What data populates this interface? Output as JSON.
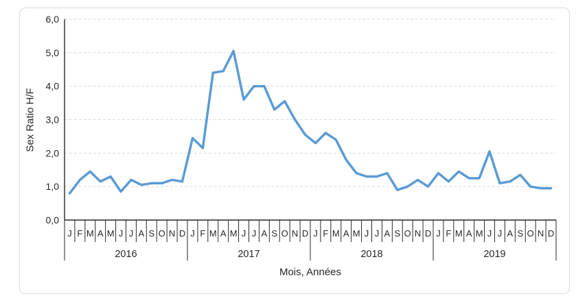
{
  "window": {
    "background": "#ffffff",
    "frame_border_color": "#d9d9d9"
  },
  "chart": {
    "y_axis_title": "Sex Ratio H/F",
    "x_axis_title": "Mois, Années",
    "colors": {
      "line": "#5B9BD5",
      "gridline": "#D9D9D9",
      "axis": "#262626",
      "text": "#262626"
    }
  },
  "chart_data": {
    "type": "line",
    "title": "",
    "ylabel": "Sex Ratio H/F",
    "xlabel": "Mois, Années",
    "ylim": [
      0,
      6
    ],
    "grid": "horizontal-dashed",
    "legend": "none",
    "y_ticks": [
      {
        "value": 0,
        "label": "0,0"
      },
      {
        "value": 1,
        "label": "1,0"
      },
      {
        "value": 2,
        "label": "2,0"
      },
      {
        "value": 3,
        "label": "3,0"
      },
      {
        "value": 4,
        "label": "4,0"
      },
      {
        "value": 5,
        "label": "5,0"
      },
      {
        "value": 6,
        "label": "6,0"
      }
    ],
    "x_categories": {
      "months": [
        "J",
        "F",
        "M",
        "A",
        "M",
        "J",
        "J",
        "A",
        "S",
        "O",
        "N",
        "D"
      ],
      "years": [
        "2016",
        "2017",
        "2018",
        "2019"
      ]
    },
    "series": [
      {
        "name": "Sex Ratio H/F",
        "color": "#5B9BD5",
        "values": [
          0.8,
          1.2,
          1.45,
          1.15,
          1.3,
          0.85,
          1.2,
          1.05,
          1.1,
          1.1,
          1.2,
          1.15,
          2.45,
          2.15,
          4.4,
          4.45,
          5.05,
          3.6,
          4.0,
          4.0,
          3.3,
          3.55,
          3.0,
          2.55,
          2.3,
          2.6,
          2.4,
          1.8,
          1.4,
          1.3,
          1.3,
          1.4,
          0.9,
          1.0,
          1.2,
          1.0,
          1.4,
          1.15,
          1.45,
          1.25,
          1.25,
          2.05,
          1.1,
          1.15,
          1.35,
          1.0,
          0.95,
          0.95
        ]
      }
    ]
  }
}
